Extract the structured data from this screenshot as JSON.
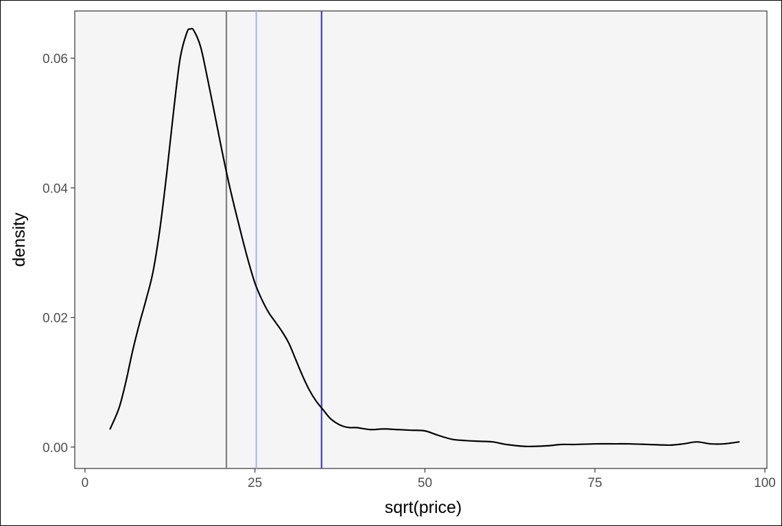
{
  "chart_data": {
    "type": "line",
    "title": "",
    "xlabel": "sqrt(price)",
    "ylabel": "density",
    "xlim": [
      -1.5,
      100.3
    ],
    "ylim": [
      -0.0033,
      0.0673
    ],
    "x_ticks": [
      0,
      25,
      50,
      75,
      100
    ],
    "y_ticks": [
      0.0,
      0.02,
      0.04,
      0.06
    ],
    "x_tick_labels": [
      "0",
      "25",
      "50",
      "75",
      "100"
    ],
    "y_tick_labels": [
      "0.00",
      "0.02",
      "0.04",
      "0.06"
    ],
    "grid": false,
    "panel_background": "#f5f5f5",
    "series": [
      {
        "color": "#000000",
        "x": [
          3.7,
          5,
          6,
          7,
          8,
          9,
          10,
          11,
          12,
          13,
          14,
          15,
          15.5,
          16,
          17,
          18,
          19,
          20,
          21,
          22,
          23,
          24,
          25,
          26,
          27,
          28,
          29,
          30,
          31,
          32,
          33,
          34,
          35,
          36,
          37,
          38,
          39,
          40,
          42,
          44,
          46,
          48,
          50,
          52,
          54,
          56,
          58,
          60,
          62,
          65,
          68,
          70,
          72,
          75,
          78,
          80,
          83,
          86,
          88,
          90,
          92,
          94,
          96.2
        ],
        "y": [
          0.0028,
          0.006,
          0.01,
          0.0148,
          0.019,
          0.0228,
          0.027,
          0.0335,
          0.042,
          0.0515,
          0.06,
          0.064,
          0.0645,
          0.0643,
          0.0618,
          0.057,
          0.0518,
          0.0465,
          0.0415,
          0.037,
          0.0328,
          0.0288,
          0.0253,
          0.0228,
          0.0208,
          0.0193,
          0.0178,
          0.016,
          0.0135,
          0.011,
          0.0088,
          0.0071,
          0.0058,
          0.0045,
          0.0037,
          0.0032,
          0.003,
          0.003,
          0.0027,
          0.0028,
          0.0027,
          0.0026,
          0.0025,
          0.0018,
          0.0012,
          0.001,
          0.0009,
          0.0008,
          0.0004,
          0.0001,
          0.0002,
          0.0004,
          0.0004,
          0.0005,
          0.0005,
          0.0005,
          0.0004,
          0.0003,
          0.0005,
          0.0008,
          0.0005,
          0.0005,
          0.0008
        ]
      }
    ],
    "vlines": [
      {
        "x": 20.8,
        "color": "#7f7f7f"
      },
      {
        "x": 25.2,
        "color": "#b3b3f0"
      },
      {
        "x": 34.8,
        "color": "#3a3ae6"
      }
    ]
  }
}
